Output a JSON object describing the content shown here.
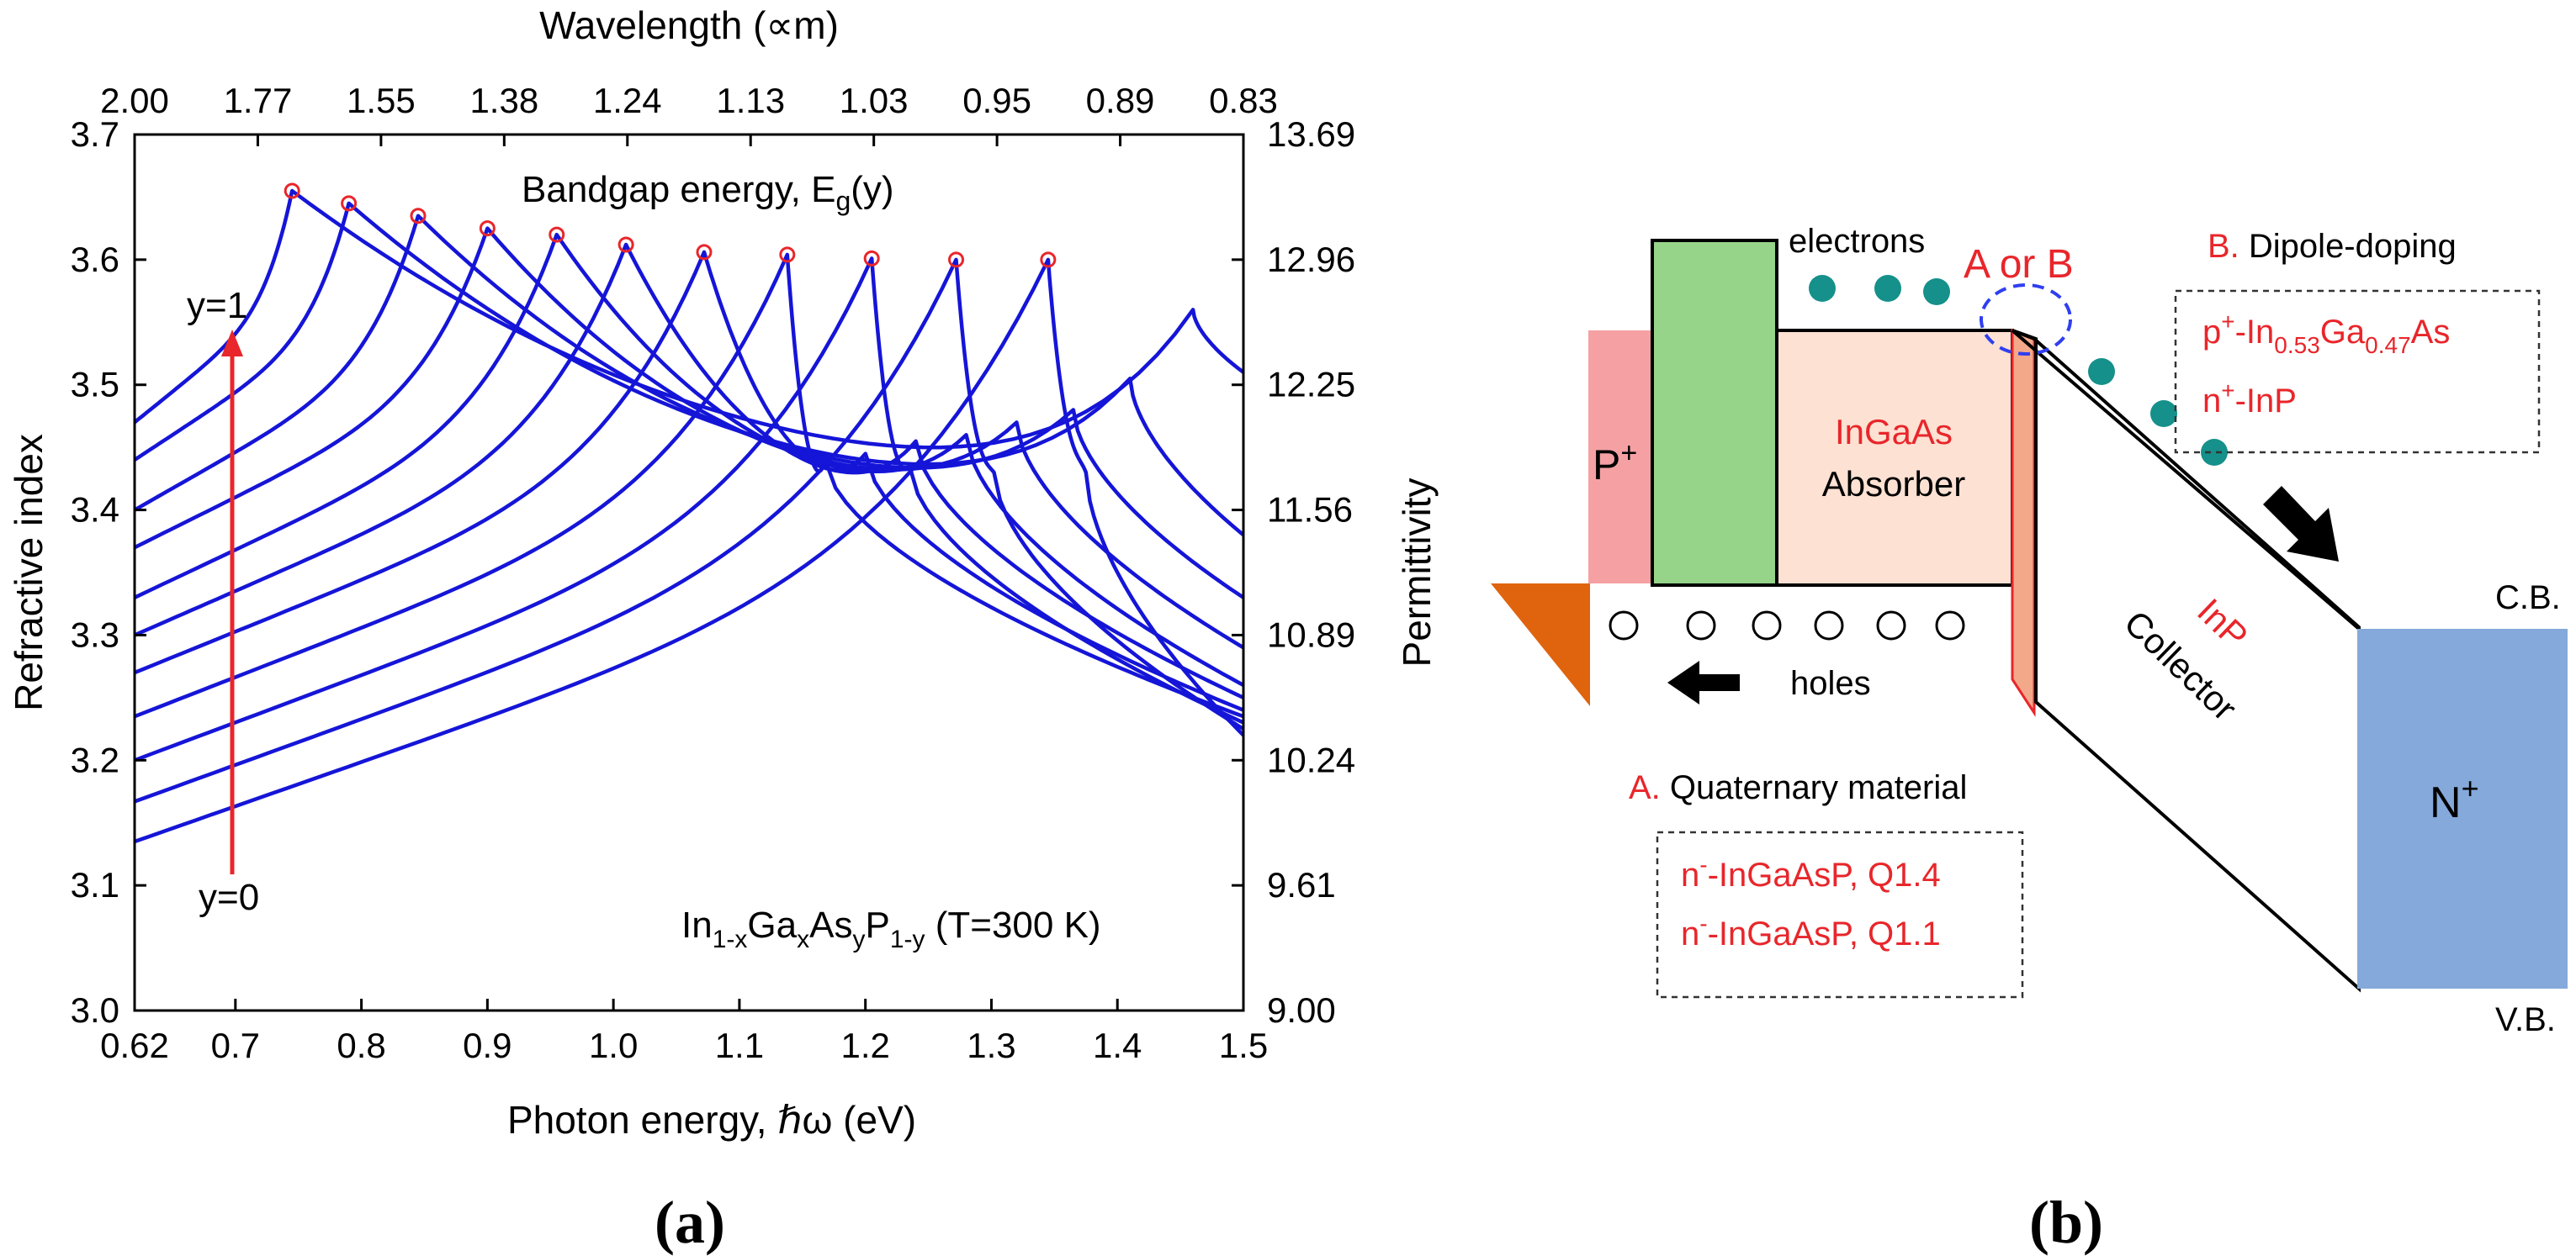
{
  "panel_a": {
    "label": "(a)",
    "top_axis_title": "Wavelength (∝m)",
    "inner_title_main": "Bandgap energy, E",
    "inner_title_sub": "g",
    "inner_title_end": "(y)",
    "y1_label": "y=1",
    "y0_label": "y=0",
    "formula": {
      "p1": "In",
      "s1": "1-x",
      "p2": "Ga",
      "s2": "x",
      "p3": "As",
      "s3": "y",
      "p4": "P",
      "s4": "1-y",
      "p5": " (T=300 K)"
    }
  },
  "panel_b": {
    "label": "(b)",
    "p_plus": "P",
    "p_plus_sup": "+",
    "n_plus": "N",
    "n_plus_sup": "+",
    "cb_label": "C.B.",
    "vb_label": "V.B.",
    "electrons_label": "electrons",
    "holes_label": "holes",
    "a_or_b": "A or B",
    "absorber_material": "InGaAs",
    "absorber_label": "Absorber",
    "collector_material": "InP",
    "collector_label": "Collector",
    "option_b": {
      "letter": "B.",
      "title": " Dipole-doping",
      "line1": {
        "p1": "p",
        "sup": "+",
        "p2": "-In",
        "s1": "0.53",
        "p3": "Ga",
        "s2": "0.47",
        "p4": "As"
      },
      "line2": {
        "p1": "n",
        "sup": "+",
        "p2": "-InP"
      }
    },
    "option_a": {
      "letter": "A.",
      "title": " Quaternary material",
      "line1": {
        "p1": "n",
        "sup": "-",
        "p2": "-InGaAsP, Q1.4"
      },
      "line2": {
        "p1": "n",
        "sup": "-",
        "p2": "-InGaAsP, Q1.1"
      }
    },
    "colors": {
      "p_plus": "#f5a0a3",
      "absorber_region": "#96d48a",
      "absorber": "#fde1d3",
      "interlayer": "#f4a88a",
      "n_plus": "#84a9da",
      "electron": "#15908a",
      "contact": "#e0640e",
      "highlight": "#2f3ff0"
    }
  },
  "chart_data": {
    "type": "line",
    "xlabel": "Photon energy, ℏω (eV)",
    "ylabel": "Refractive index",
    "y2label": "Permittivity",
    "xlim": [
      0.62,
      1.5
    ],
    "ylim": [
      3.0,
      3.7
    ],
    "x_ticks": [
      "0.62",
      "0.7",
      "0.8",
      "0.9",
      "1.0",
      "1.1",
      "1.2",
      "1.3",
      "1.4",
      "1.5"
    ],
    "x_tick_values": [
      0.62,
      0.7,
      0.8,
      0.9,
      1.0,
      1.1,
      1.2,
      1.3,
      1.4,
      1.5
    ],
    "y_ticks": [
      "3.0",
      "3.1",
      "3.2",
      "3.3",
      "3.4",
      "3.5",
      "3.6",
      "3.7"
    ],
    "y_tick_values": [
      3.0,
      3.1,
      3.2,
      3.3,
      3.4,
      3.5,
      3.6,
      3.7
    ],
    "y2_ticks": [
      "9.00",
      "9.61",
      "10.24",
      "10.89",
      "11.56",
      "12.25",
      "12.96",
      "13.69"
    ],
    "top_ticks": [
      "2.00",
      "1.77",
      "1.55",
      "1.38",
      "1.24",
      "1.13",
      "1.03",
      "0.95",
      "0.89",
      "0.83"
    ],
    "line_color": "#1515d8",
    "marker_color": "#e8262b",
    "grid": false,
    "series": [
      {
        "y": 1.0,
        "Eg": 0.745,
        "n0": 3.47,
        "peak": 3.655,
        "n_min": 3.43,
        "hump_x": 1.46,
        "hump_peak": 3.56,
        "end": 3.51
      },
      {
        "y": 0.9,
        "Eg": 0.79,
        "n0": 3.44,
        "peak": 3.645,
        "n_min": 3.42,
        "hump_x": 1.41,
        "hump_peak": 3.505,
        "end": 3.38
      },
      {
        "y": 0.8,
        "Eg": 0.845,
        "n0": 3.4,
        "peak": 3.635,
        "n_min": 3.42,
        "hump_x": 1.365,
        "hump_peak": 3.48,
        "end": 3.33
      },
      {
        "y": 0.7,
        "Eg": 0.9,
        "n0": 3.37,
        "peak": 3.625,
        "n_min": 3.42,
        "hump_x": 1.32,
        "hump_peak": 3.47,
        "end": 3.29
      },
      {
        "y": 0.6,
        "Eg": 0.955,
        "n0": 3.33,
        "peak": 3.62,
        "n_min": 3.42,
        "hump_x": 1.28,
        "hump_peak": 3.46,
        "end": 3.26
      },
      {
        "y": 0.5,
        "Eg": 1.01,
        "n0": 3.3,
        "peak": 3.612,
        "n_min": 3.42,
        "hump_x": 1.24,
        "hump_peak": 3.455,
        "end": 3.25
      },
      {
        "y": 0.4,
        "Eg": 1.072,
        "n0": 3.27,
        "peak": 3.606,
        "n_min": 3.425,
        "hump_x": 1.2,
        "hump_peak": 3.445,
        "end": 3.24
      },
      {
        "y": 0.3,
        "Eg": 1.138,
        "n0": 3.235,
        "peak": 3.604,
        "n_min": 3.425,
        "hump_x": 1.165,
        "hump_peak": 3.44,
        "end": 3.235
      },
      {
        "y": 0.2,
        "Eg": 1.205,
        "n0": 3.2,
        "peak": 3.601,
        "n_min": 3.43,
        "hump_x": 1.14,
        "hump_peak": 3.435,
        "end": 3.23
      },
      {
        "y": 0.1,
        "Eg": 1.272,
        "n0": 3.167,
        "peak": 3.6,
        "n_min": 3.435,
        "hump_x": 1.12,
        "hump_peak": 3.43,
        "end": 3.225
      },
      {
        "y": 0.0,
        "Eg": 1.345,
        "n0": 3.135,
        "peak": 3.6,
        "n_min": 3.44,
        "hump_x": 1.1,
        "hump_peak": 3.43,
        "end": 3.22
      }
    ]
  }
}
